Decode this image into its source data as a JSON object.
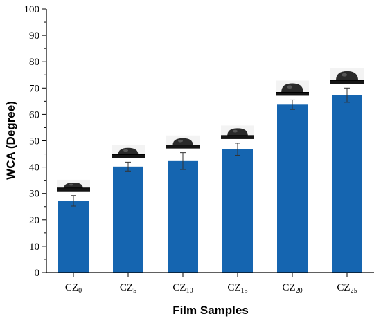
{
  "chart_data": {
    "type": "bar",
    "categories": [
      {
        "base": "CZ",
        "sub": "0"
      },
      {
        "base": "CZ",
        "sub": "5"
      },
      {
        "base": "CZ",
        "sub": "10"
      },
      {
        "base": "CZ",
        "sub": "15"
      },
      {
        "base": "CZ",
        "sub": "20"
      },
      {
        "base": "CZ",
        "sub": "25"
      }
    ],
    "values": [
      27.2,
      40.2,
      42.3,
      46.8,
      63.7,
      67.3
    ],
    "errors": [
      2.0,
      1.7,
      3.2,
      2.3,
      1.8,
      2.7
    ],
    "xlabel": "Film Samples",
    "ylabel": "WCA (Degree)",
    "ylim": [
      0,
      100
    ],
    "yticks": [
      "0",
      "10",
      "20",
      "30",
      "40",
      "50",
      "60",
      "70",
      "80",
      "90",
      "100"
    ],
    "bar_color": "#1565b0",
    "droplet_images": [
      "water-droplet-0",
      "water-droplet-5",
      "water-droplet-10",
      "water-droplet-15",
      "water-droplet-20",
      "water-droplet-25"
    ],
    "grid": false,
    "legend": "none"
  }
}
